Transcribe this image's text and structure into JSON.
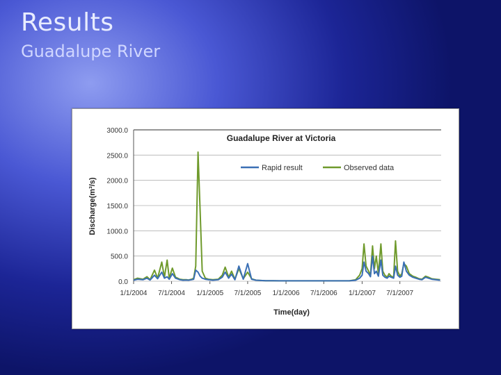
{
  "slide": {
    "title": "Results",
    "subtitle": "Guadalupe River"
  },
  "colors": {
    "rapid": "#3a6fb5",
    "observed": "#6f9a2c",
    "grid": "#b0b0b0"
  },
  "chart_data": {
    "type": "line",
    "title": "Guadalupe River at Victoria",
    "xlabel": "Time(day)",
    "ylabel": "Discharge(m³/s)",
    "ylim": [
      0,
      3000
    ],
    "yticks": [
      "0.0",
      "500.0",
      "1000.0",
      "1500.0",
      "2000.0",
      "2500.0",
      "3000.0"
    ],
    "xlim": [
      "2004-01-01",
      "2008-01-15"
    ],
    "xticks": [
      "1/1/2004",
      "7/1/2004",
      "1/1/2005",
      "7/1/2005",
      "1/1/2006",
      "7/1/2006",
      "1/1/2007",
      "7/1/2007"
    ],
    "grid": "horizontal",
    "legend": "top-right",
    "series": [
      {
        "name": "Rapid result",
        "x": [
          "2004-01-01",
          "2004-01-20",
          "2004-02-15",
          "2004-03-05",
          "2004-03-20",
          "2004-04-10",
          "2004-04-25",
          "2004-05-15",
          "2004-05-28",
          "2004-06-10",
          "2004-06-20",
          "2004-07-05",
          "2004-07-20",
          "2004-08-10",
          "2004-08-25",
          "2004-09-10",
          "2004-09-20",
          "2004-10-05",
          "2004-10-15",
          "2004-10-25",
          "2004-11-05",
          "2004-11-15",
          "2004-11-25",
          "2004-12-10",
          "2004-12-25",
          "2005-01-15",
          "2005-02-10",
          "2005-03-01",
          "2005-03-15",
          "2005-04-01",
          "2005-04-15",
          "2005-05-01",
          "2005-05-20",
          "2005-06-10",
          "2005-07-01",
          "2005-07-20",
          "2005-08-10",
          "2005-09-01",
          "2005-10-01",
          "2005-11-01",
          "2005-12-01",
          "2006-01-01",
          "2006-02-01",
          "2006-03-01",
          "2006-04-01",
          "2006-05-01",
          "2006-06-01",
          "2006-07-01",
          "2006-08-01",
          "2006-09-01",
          "2006-10-01",
          "2006-11-01",
          "2006-12-01",
          "2006-12-20",
          "2007-01-01",
          "2007-01-10",
          "2007-01-20",
          "2007-02-01",
          "2007-02-10",
          "2007-02-20",
          "2007-03-01",
          "2007-03-10",
          "2007-03-20",
          "2007-04-01",
          "2007-04-10",
          "2007-04-20",
          "2007-05-01",
          "2007-05-10",
          "2007-05-20",
          "2007-06-01",
          "2007-06-10",
          "2007-06-20",
          "2007-07-01",
          "2007-07-10",
          "2007-07-20",
          "2007-08-01",
          "2007-08-15",
          "2007-09-01",
          "2007-09-15",
          "2007-10-01",
          "2007-10-15",
          "2007-11-01",
          "2007-11-15",
          "2007-12-01",
          "2007-12-20",
          "2008-01-10"
        ],
        "values": [
          20,
          40,
          30,
          60,
          25,
          120,
          50,
          180,
          60,
          90,
          40,
          150,
          60,
          30,
          20,
          25,
          20,
          30,
          40,
          220,
          180,
          100,
          60,
          40,
          30,
          20,
          30,
          80,
          180,
          60,
          140,
          30,
          300,
          40,
          350,
          40,
          20,
          15,
          10,
          10,
          8,
          8,
          8,
          8,
          8,
          8,
          8,
          8,
          8,
          8,
          8,
          8,
          20,
          60,
          120,
          380,
          200,
          150,
          90,
          500,
          150,
          200,
          100,
          420,
          120,
          80,
          60,
          100,
          80,
          60,
          300,
          120,
          80,
          100,
          380,
          200,
          120,
          80,
          60,
          40,
          30,
          80,
          60,
          40,
          30,
          20
        ]
      },
      {
        "name": "Observed data",
        "x": [
          "2004-01-01",
          "2004-01-20",
          "2004-02-15",
          "2004-03-05",
          "2004-03-20",
          "2004-04-10",
          "2004-04-25",
          "2004-05-15",
          "2004-05-28",
          "2004-06-10",
          "2004-06-20",
          "2004-07-05",
          "2004-07-20",
          "2004-08-10",
          "2004-08-25",
          "2004-09-10",
          "2004-09-20",
          "2004-10-05",
          "2004-10-15",
          "2004-10-25",
          "2004-11-05",
          "2004-11-15",
          "2004-11-25",
          "2004-12-10",
          "2004-12-25",
          "2005-01-15",
          "2005-02-10",
          "2005-03-01",
          "2005-03-15",
          "2005-04-01",
          "2005-04-15",
          "2005-05-01",
          "2005-05-20",
          "2005-06-10",
          "2005-07-01",
          "2005-07-20",
          "2005-08-10",
          "2005-09-01",
          "2005-10-01",
          "2005-11-01",
          "2005-12-01",
          "2006-01-01",
          "2006-02-01",
          "2006-03-01",
          "2006-04-01",
          "2006-05-01",
          "2006-06-01",
          "2006-07-01",
          "2006-08-01",
          "2006-09-01",
          "2006-10-01",
          "2006-11-01",
          "2006-12-01",
          "2006-12-20",
          "2007-01-01",
          "2007-01-10",
          "2007-01-20",
          "2007-02-01",
          "2007-02-10",
          "2007-02-20",
          "2007-03-01",
          "2007-03-10",
          "2007-03-20",
          "2007-04-01",
          "2007-04-10",
          "2007-04-20",
          "2007-05-01",
          "2007-05-10",
          "2007-05-20",
          "2007-06-01",
          "2007-06-10",
          "2007-06-20",
          "2007-07-01",
          "2007-07-10",
          "2007-07-20",
          "2007-08-01",
          "2007-08-15",
          "2007-09-01",
          "2007-09-15",
          "2007-10-01",
          "2007-10-15",
          "2007-11-01",
          "2007-11-15",
          "2007-12-01",
          "2007-12-20",
          "2008-01-10"
        ],
        "values": [
          30,
          60,
          40,
          90,
          30,
          220,
          60,
          380,
          80,
          420,
          60,
          260,
          80,
          40,
          30,
          30,
          25,
          40,
          60,
          300,
          2560,
          1400,
          200,
          60,
          40,
          30,
          40,
          120,
          280,
          80,
          200,
          40,
          250,
          50,
          180,
          50,
          20,
          15,
          10,
          10,
          8,
          8,
          8,
          8,
          8,
          8,
          8,
          8,
          8,
          8,
          8,
          8,
          30,
          120,
          250,
          740,
          300,
          200,
          120,
          700,
          250,
          500,
          150,
          740,
          200,
          120,
          80,
          150,
          100,
          80,
          800,
          200,
          100,
          150,
          350,
          300,
          150,
          100,
          80,
          50,
          40,
          100,
          80,
          50,
          40,
          30
        ]
      }
    ]
  }
}
